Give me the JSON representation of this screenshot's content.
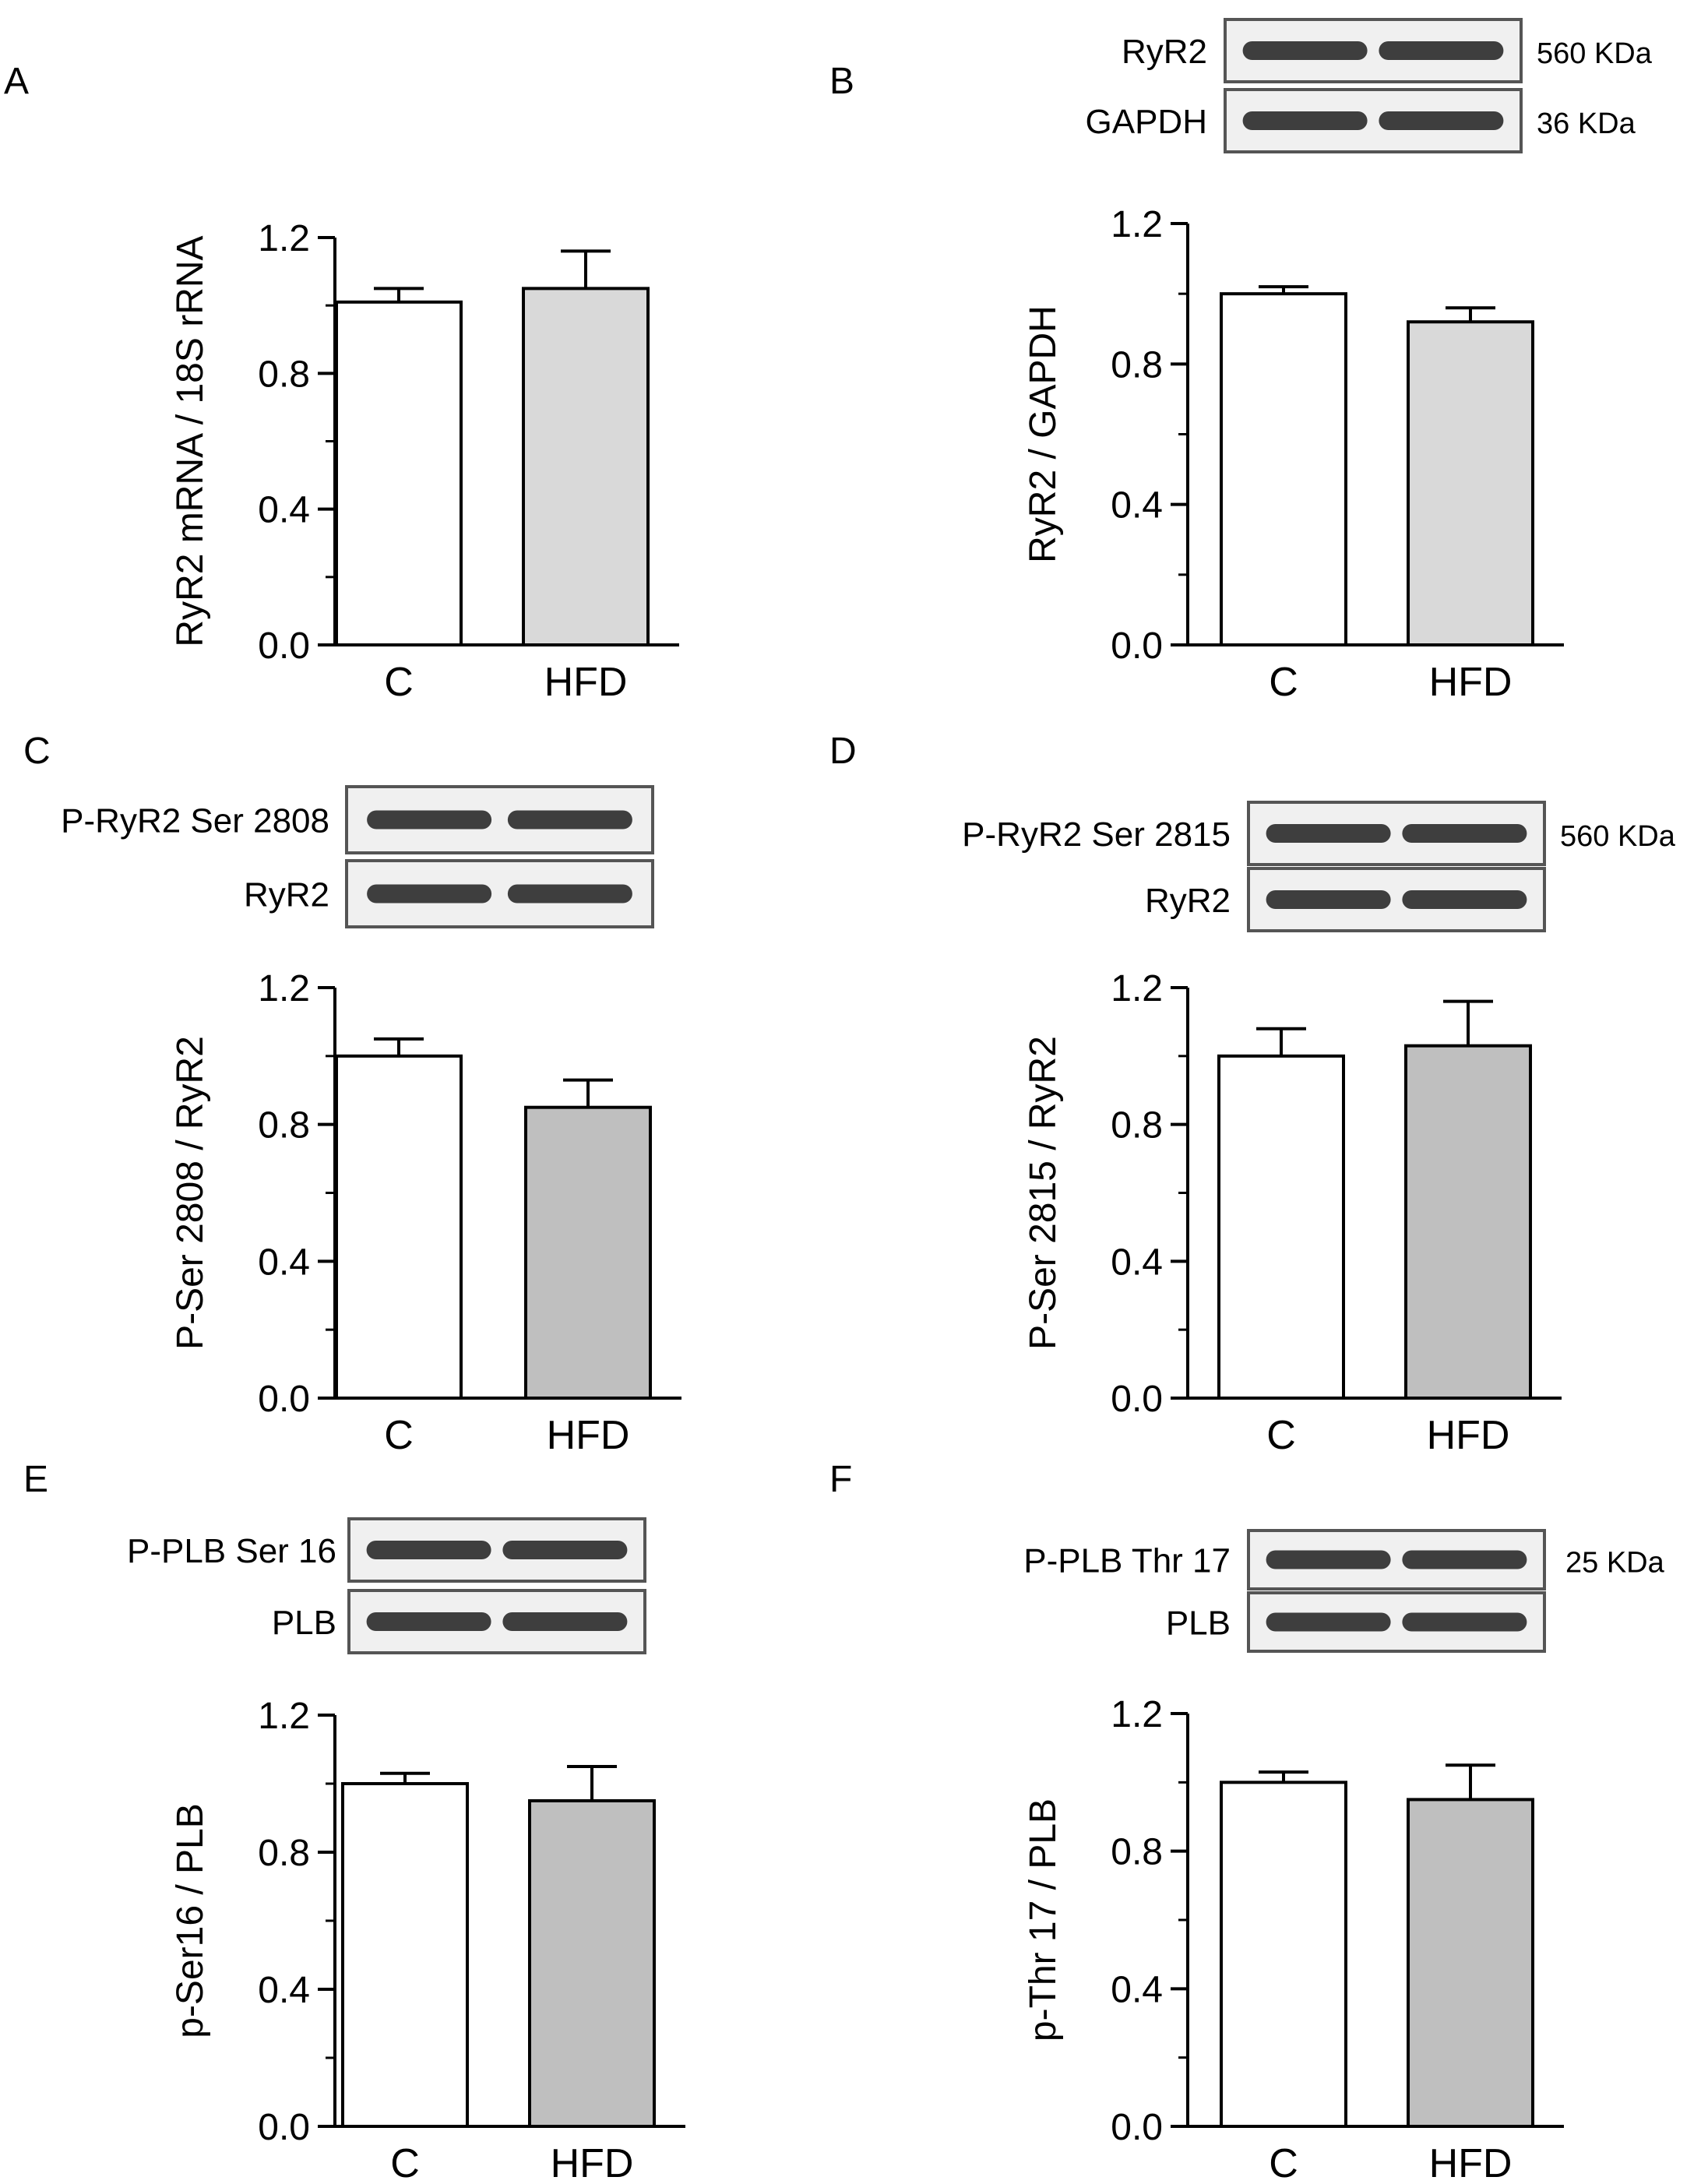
{
  "chart_data": [
    {
      "panel": "A",
      "type": "bar",
      "categories": [
        "C",
        "HFD"
      ],
      "values": [
        1.01,
        1.05
      ],
      "errors": [
        0.04,
        0.11
      ],
      "bar_colors": [
        "#ffffff",
        "#d9d9d9"
      ],
      "ylabel": "RyR2 mRNA / 18S rRNA",
      "ylim": [
        0,
        1.2
      ],
      "yticks": [
        "0.0",
        "0.4",
        "0.8",
        "1.2"
      ],
      "blot": null
    },
    {
      "panel": "B",
      "type": "bar",
      "categories": [
        "C",
        "HFD"
      ],
      "values": [
        1.0,
        0.92
      ],
      "errors": [
        0.02,
        0.04
      ],
      "bar_colors": [
        "#ffffff",
        "#d9d9d9"
      ],
      "ylabel": "RyR2 / GAPDH",
      "ylim": [
        0,
        1.2
      ],
      "yticks": [
        "0.0",
        "0.4",
        "0.8",
        "1.2"
      ],
      "blot": {
        "rows": [
          {
            "label": "RyR2",
            "size": "560 KDa"
          },
          {
            "label": "GAPDH",
            "size": "36 KDa"
          }
        ]
      }
    },
    {
      "panel": "C",
      "type": "bar",
      "categories": [
        "C",
        "HFD"
      ],
      "values": [
        1.0,
        0.85
      ],
      "errors": [
        0.05,
        0.08
      ],
      "bar_colors": [
        "#ffffff",
        "#bfbfbf"
      ],
      "ylabel": "P-Ser 2808 / RyR2",
      "ylim": [
        0,
        1.2
      ],
      "yticks": [
        "0.0",
        "0.4",
        "0.8",
        "1.2"
      ],
      "blot": {
        "rows": [
          {
            "label": "P-RyR2 Ser 2808",
            "size": ""
          },
          {
            "label": "RyR2",
            "size": ""
          }
        ]
      }
    },
    {
      "panel": "D",
      "type": "bar",
      "categories": [
        "C",
        "HFD"
      ],
      "values": [
        1.0,
        1.03
      ],
      "errors": [
        0.08,
        0.13
      ],
      "bar_colors": [
        "#ffffff",
        "#bfbfbf"
      ],
      "ylabel": "P-Ser 2815 / RyR2",
      "ylim": [
        0,
        1.2
      ],
      "yticks": [
        "0.0",
        "0.4",
        "0.8",
        "1.2"
      ],
      "blot": {
        "rows": [
          {
            "label": "P-RyR2 Ser 2815",
            "size": "560 KDa"
          },
          {
            "label": "RyR2",
            "size": ""
          }
        ]
      }
    },
    {
      "panel": "E",
      "type": "bar",
      "categories": [
        "C",
        "HFD"
      ],
      "values": [
        1.0,
        0.95
      ],
      "errors": [
        0.03,
        0.1
      ],
      "bar_colors": [
        "#ffffff",
        "#bfbfbf"
      ],
      "ylabel": "p-Ser16 / PLB",
      "ylim": [
        0,
        1.2
      ],
      "yticks": [
        "0.0",
        "0.4",
        "0.8",
        "1.2"
      ],
      "blot": {
        "rows": [
          {
            "label": "P-PLB Ser 16",
            "size": ""
          },
          {
            "label": "PLB",
            "size": ""
          }
        ]
      }
    },
    {
      "panel": "F",
      "type": "bar",
      "categories": [
        "C",
        "HFD"
      ],
      "values": [
        1.0,
        0.95
      ],
      "errors": [
        0.03,
        0.1
      ],
      "bar_colors": [
        "#ffffff",
        "#bfbfbf"
      ],
      "ylabel": "p-Thr 17 / PLB",
      "ylim": [
        0,
        1.2
      ],
      "yticks": [
        "0.0",
        "0.4",
        "0.8",
        "1.2"
      ],
      "blot": {
        "rows": [
          {
            "label": "P-PLB Thr 17",
            "size": "25 KDa"
          },
          {
            "label": "PLB",
            "size": ""
          }
        ]
      }
    }
  ]
}
